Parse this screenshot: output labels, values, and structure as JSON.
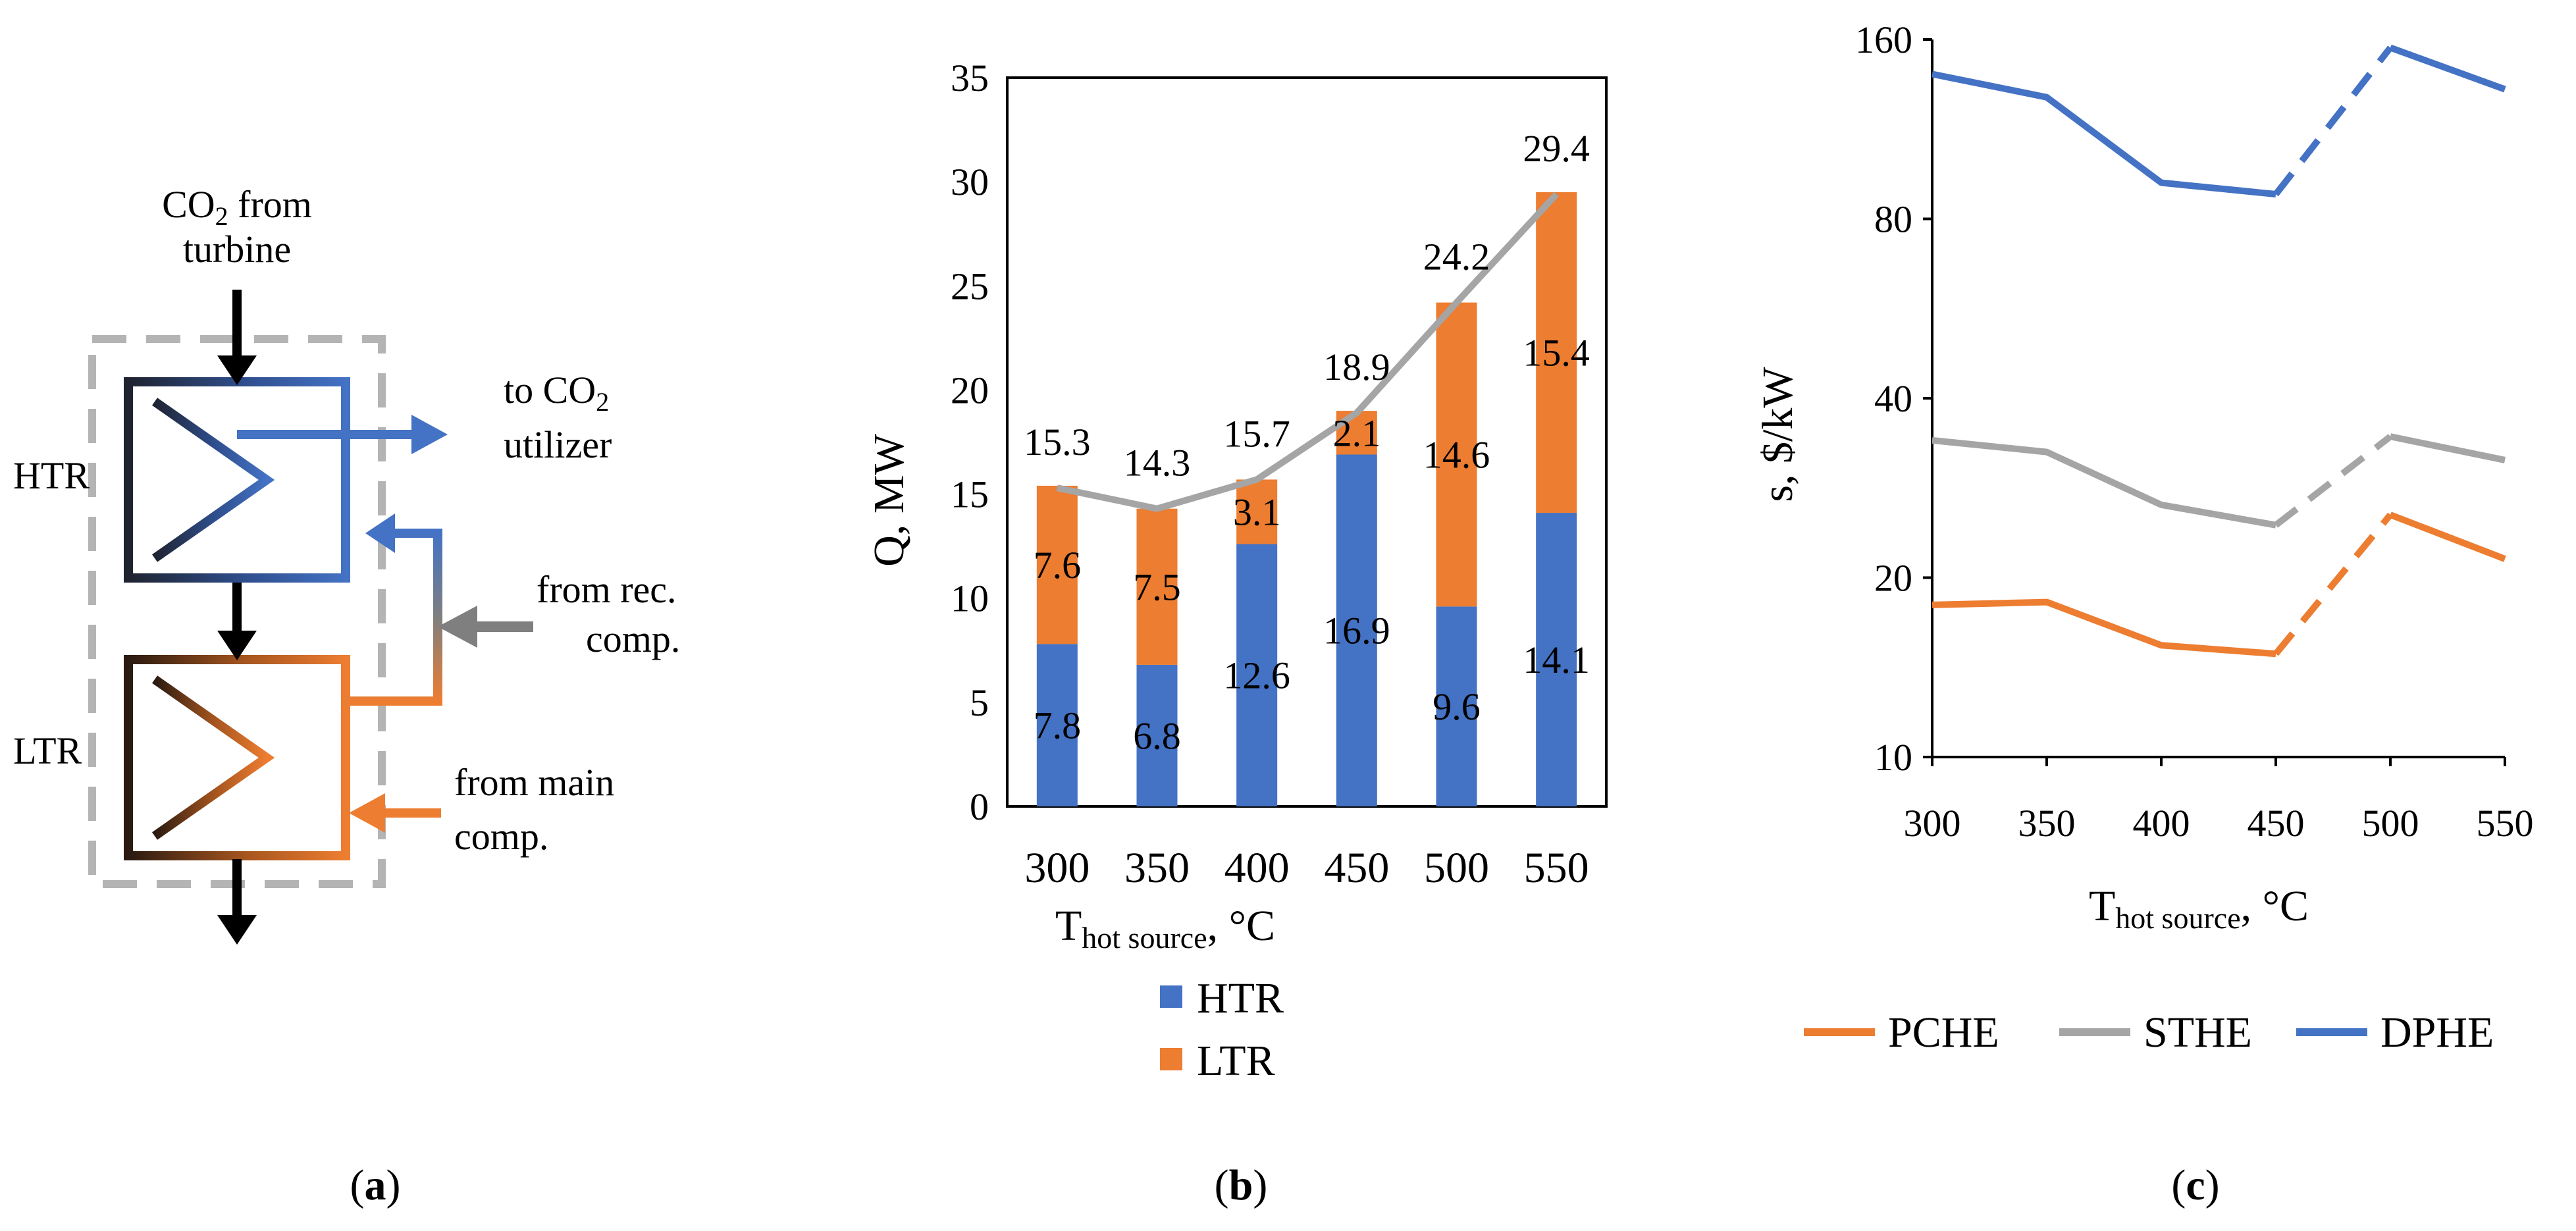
{
  "panel_a": {
    "label_open": "(",
    "label_letter": "a",
    "label_close": ")",
    "co2_from_prefix": "CO",
    "co2_from_sub": "2",
    "co2_from_suffix": " from",
    "turbine": "turbine",
    "to_co2_prefix": "to CO",
    "to_co2_sub": "2",
    "utilizer": "utilizer",
    "htr": "HTR",
    "ltr": "LTR",
    "from_rec_1": "from rec.",
    "from_rec_2": "comp.",
    "from_main_1": "from main",
    "from_main_2": "comp.",
    "colors": {
      "htr": "#4472C4",
      "ltr": "#ED7D31",
      "dark": "#1f2330",
      "rec": "#7f7f7f",
      "dash": "#b4b4b4"
    }
  },
  "panel_b": {
    "label_open": "(",
    "label_letter": "b",
    "label_close": ")",
    "ylabel": "Q, MW",
    "xlabel_main": "T",
    "xlabel_sub": "hot source",
    "xlabel_unit": ", °C",
    "legend": [
      {
        "name": "HTR",
        "color": "#4472C4"
      },
      {
        "name": "LTR",
        "color": "#ED7D31"
      }
    ]
  },
  "panel_c": {
    "label_open": "(",
    "label_letter": "c",
    "label_close": ")",
    "ylabel": "s, $/kW",
    "xlabel_main": "T",
    "xlabel_sub": "hot source",
    "xlabel_unit": ", °C",
    "legend": [
      {
        "name": "PCHE",
        "color": "#ED7D31"
      },
      {
        "name": "STHE",
        "color": "#A5A5A5"
      },
      {
        "name": "DPHE",
        "color": "#4472C4"
      }
    ]
  },
  "chart_data": [
    {
      "type": "bar",
      "stacked": true,
      "title": "",
      "xlabel": "T hot source, °C",
      "ylabel": "Q, MW",
      "categories": [
        "300",
        "350",
        "400",
        "450",
        "500",
        "550"
      ],
      "ylim": [
        0,
        35
      ],
      "yticks": [
        "0",
        "5",
        "10",
        "15",
        "20",
        "25",
        "30",
        "35"
      ],
      "series": [
        {
          "name": "HTR",
          "color": "#4472C4",
          "values": [
            7.8,
            6.8,
            12.6,
            16.9,
            9.6,
            14.1
          ],
          "labels": [
            "7.8",
            "6.8",
            "12.6",
            "16.9",
            "9.6",
            "14.1"
          ]
        },
        {
          "name": "LTR",
          "color": "#ED7D31",
          "values": [
            7.6,
            7.5,
            3.1,
            2.1,
            14.6,
            15.4
          ],
          "labels": [
            "7.6",
            "7.5",
            "3.1",
            "2.1",
            "14.6",
            "15.4"
          ]
        }
      ],
      "total_line": {
        "color": "#A5A5A5",
        "values": [
          15.3,
          14.3,
          15.7,
          18.9,
          24.2,
          29.4
        ],
        "labels": [
          "15.3",
          "14.3",
          "15.7",
          "18.9",
          "24.2",
          "29.4"
        ]
      },
      "legend": "bottom"
    },
    {
      "type": "line",
      "title": "",
      "xlabel": "T hot source, °C",
      "ylabel": "s, $/kW",
      "x": [
        "300",
        "350",
        "400",
        "450",
        "500",
        "550"
      ],
      "yscale": "log",
      "ylim": [
        10,
        160
      ],
      "yticks": [
        "10",
        "20",
        "40",
        "80",
        "160"
      ],
      "series": [
        {
          "name": "PCHE",
          "color": "#ED7D31",
          "values": [
            18.0,
            18.2,
            15.4,
            14.9,
            25.5,
            21.5
          ],
          "dashed_between": [
            "450",
            "500"
          ]
        },
        {
          "name": "STHE",
          "color": "#A5A5A5",
          "values": [
            34.0,
            32.5,
            26.5,
            24.5,
            34.5,
            31.5
          ],
          "dashed_between": [
            "450",
            "500"
          ]
        },
        {
          "name": "DPHE",
          "color": "#4472C4",
          "values": [
            140,
            128,
            92,
            88,
            155,
            132
          ],
          "dashed_between": [
            "450",
            "500"
          ]
        }
      ],
      "legend": "bottom"
    }
  ]
}
